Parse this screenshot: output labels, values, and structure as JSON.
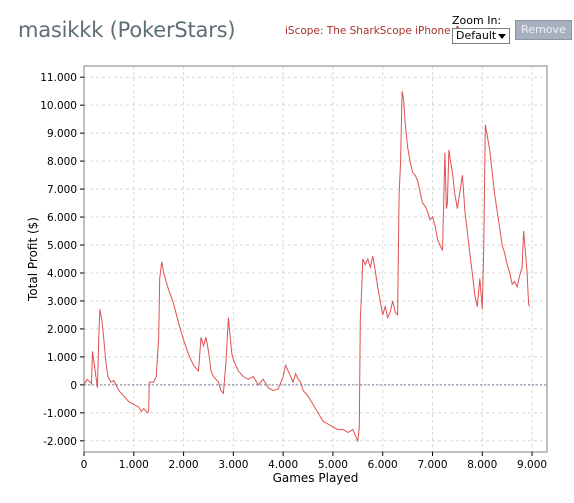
{
  "header": {
    "player_name": "masikkk (PokerStars)",
    "promo_link": "iScope: The SharkScope iPhone App",
    "zoom_label": "Zoom In:",
    "zoom_selected": "Default",
    "remove_label": "Remove"
  },
  "colors": {
    "series": "#e05050",
    "grid": "#d8d8d8",
    "zero_line": "#7a7a9a",
    "plot_border": "#808080"
  },
  "chart_data": {
    "type": "line",
    "title": "",
    "xlabel": "Games Played",
    "ylabel": "Total Profit ($)",
    "xlim": [
      0,
      9300
    ],
    "ylim": [
      -2400,
      11400
    ],
    "x_ticks": [
      0,
      1000,
      2000,
      3000,
      4000,
      5000,
      6000,
      7000,
      8000,
      9000
    ],
    "x_tick_labels": [
      "0",
      "1.000",
      "2.000",
      "3.000",
      "4.000",
      "5.000",
      "6.000",
      "7.000",
      "8.000",
      "9.000"
    ],
    "y_ticks": [
      -2000,
      -1000,
      0,
      1000,
      2000,
      3000,
      4000,
      5000,
      6000,
      7000,
      8000,
      9000,
      10000,
      11000
    ],
    "y_tick_labels": [
      "-2.000",
      "-1.000",
      "0",
      "1.000",
      "2.000",
      "3.000",
      "4.000",
      "5.000",
      "6.000",
      "7.000",
      "8.000",
      "9.000",
      "10.000",
      "11.000"
    ],
    "grid": true,
    "zero_line": true,
    "series": [
      {
        "name": "",
        "points": [
          [
            0,
            0
          ],
          [
            60,
            200
          ],
          [
            120,
            100
          ],
          [
            150,
            50
          ],
          [
            170,
            1200
          ],
          [
            200,
            800
          ],
          [
            240,
            300
          ],
          [
            270,
            -100
          ],
          [
            300,
            1800
          ],
          [
            320,
            2700
          ],
          [
            360,
            2300
          ],
          [
            400,
            1600
          ],
          [
            440,
            800
          ],
          [
            480,
            300
          ],
          [
            540,
            100
          ],
          [
            600,
            150
          ],
          [
            700,
            -200
          ],
          [
            800,
            -400
          ],
          [
            900,
            -600
          ],
          [
            1000,
            -700
          ],
          [
            1100,
            -800
          ],
          [
            1150,
            -950
          ],
          [
            1200,
            -850
          ],
          [
            1280,
            -1000
          ],
          [
            1300,
            -900
          ],
          [
            1310,
            100
          ],
          [
            1400,
            100
          ],
          [
            1450,
            300
          ],
          [
            1500,
            1700
          ],
          [
            1520,
            3800
          ],
          [
            1560,
            4400
          ],
          [
            1600,
            4000
          ],
          [
            1650,
            3700
          ],
          [
            1700,
            3400
          ],
          [
            1800,
            2900
          ],
          [
            1900,
            2200
          ],
          [
            2000,
            1600
          ],
          [
            2100,
            1100
          ],
          [
            2200,
            700
          ],
          [
            2300,
            500
          ],
          [
            2350,
            1700
          ],
          [
            2400,
            1400
          ],
          [
            2450,
            1700
          ],
          [
            2500,
            1200
          ],
          [
            2550,
            500
          ],
          [
            2600,
            300
          ],
          [
            2700,
            100
          ],
          [
            2750,
            -200
          ],
          [
            2800,
            -300
          ],
          [
            2850,
            800
          ],
          [
            2900,
            2400
          ],
          [
            2930,
            1800
          ],
          [
            2970,
            1100
          ],
          [
            3000,
            900
          ],
          [
            3050,
            700
          ],
          [
            3100,
            500
          ],
          [
            3200,
            300
          ],
          [
            3300,
            200
          ],
          [
            3400,
            300
          ],
          [
            3500,
            0
          ],
          [
            3600,
            200
          ],
          [
            3700,
            -100
          ],
          [
            3800,
            -200
          ],
          [
            3900,
            -150
          ],
          [
            4000,
            300
          ],
          [
            4050,
            700
          ],
          [
            4100,
            500
          ],
          [
            4150,
            300
          ],
          [
            4200,
            100
          ],
          [
            4250,
            400
          ],
          [
            4300,
            200
          ],
          [
            4350,
            100
          ],
          [
            4400,
            -200
          ],
          [
            4500,
            -400
          ],
          [
            4600,
            -700
          ],
          [
            4700,
            -1000
          ],
          [
            4800,
            -1300
          ],
          [
            4900,
            -1400
          ],
          [
            5000,
            -1500
          ],
          [
            5100,
            -1600
          ],
          [
            5200,
            -1600
          ],
          [
            5300,
            -1700
          ],
          [
            5400,
            -1600
          ],
          [
            5450,
            -1800
          ],
          [
            5500,
            -2000
          ],
          [
            5530,
            -1500
          ],
          [
            5550,
            2300
          ],
          [
            5580,
            3500
          ],
          [
            5600,
            4500
          ],
          [
            5650,
            4300
          ],
          [
            5700,
            4500
          ],
          [
            5750,
            4200
          ],
          [
            5800,
            4600
          ],
          [
            5850,
            4100
          ],
          [
            5900,
            3500
          ],
          [
            5950,
            3000
          ],
          [
            6000,
            2500
          ],
          [
            6050,
            2800
          ],
          [
            6100,
            2400
          ],
          [
            6150,
            2600
          ],
          [
            6200,
            3000
          ],
          [
            6250,
            2600
          ],
          [
            6300,
            2500
          ],
          [
            6330,
            6800
          ],
          [
            6360,
            8000
          ],
          [
            6390,
            10500
          ],
          [
            6420,
            10200
          ],
          [
            6450,
            9400
          ],
          [
            6500,
            8500
          ],
          [
            6550,
            8000
          ],
          [
            6600,
            7600
          ],
          [
            6650,
            7500
          ],
          [
            6700,
            7300
          ],
          [
            6750,
            6900
          ],
          [
            6800,
            6500
          ],
          [
            6850,
            6400
          ],
          [
            6900,
            6200
          ],
          [
            6950,
            5900
          ],
          [
            7000,
            6000
          ],
          [
            7050,
            5700
          ],
          [
            7100,
            5200
          ],
          [
            7150,
            5000
          ],
          [
            7200,
            4800
          ],
          [
            7250,
            8300
          ],
          [
            7280,
            6300
          ],
          [
            7300,
            6500
          ],
          [
            7330,
            8400
          ],
          [
            7360,
            8000
          ],
          [
            7400,
            7600
          ],
          [
            7450,
            6800
          ],
          [
            7500,
            6300
          ],
          [
            7550,
            6900
          ],
          [
            7600,
            7500
          ],
          [
            7650,
            6200
          ],
          [
            7700,
            5500
          ],
          [
            7750,
            4700
          ],
          [
            7800,
            4000
          ],
          [
            7850,
            3200
          ],
          [
            7900,
            2800
          ],
          [
            7950,
            3800
          ],
          [
            8000,
            2700
          ],
          [
            8030,
            5000
          ],
          [
            8060,
            9300
          ],
          [
            8100,
            8900
          ],
          [
            8150,
            8400
          ],
          [
            8200,
            7600
          ],
          [
            8250,
            6800
          ],
          [
            8300,
            6200
          ],
          [
            8350,
            5600
          ],
          [
            8400,
            5000
          ],
          [
            8450,
            4700
          ],
          [
            8500,
            4300
          ],
          [
            8550,
            4000
          ],
          [
            8600,
            3600
          ],
          [
            8650,
            3700
          ],
          [
            8700,
            3500
          ],
          [
            8750,
            3900
          ],
          [
            8800,
            4200
          ],
          [
            8830,
            5500
          ],
          [
            8860,
            4900
          ],
          [
            8900,
            4000
          ],
          [
            8930,
            2900
          ],
          [
            8950,
            2800
          ]
        ]
      }
    ]
  }
}
